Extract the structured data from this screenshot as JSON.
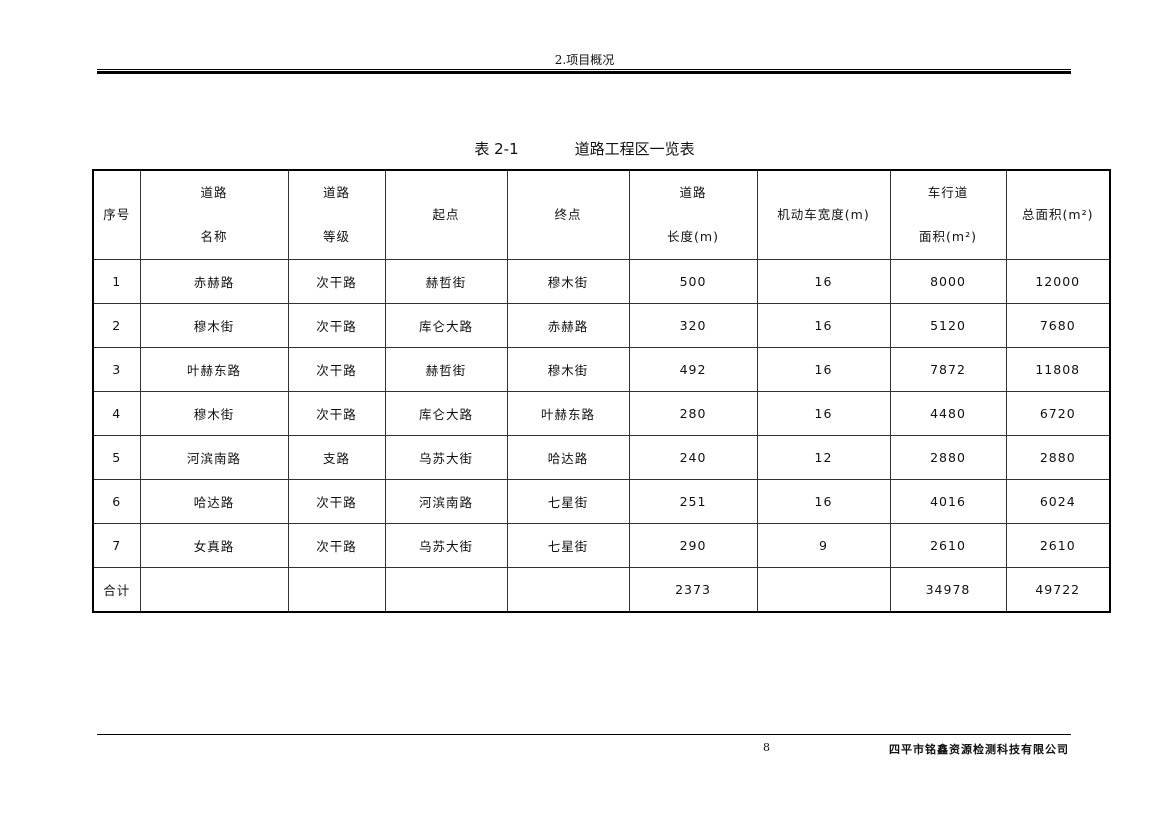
{
  "header": {
    "section": "2.项目概况"
  },
  "caption": {
    "number": "表 2-1",
    "title": "道路工程区一览表"
  },
  "table": {
    "headers": [
      [
        "序号"
      ],
      [
        "道路",
        "名称"
      ],
      [
        "道路",
        "等级"
      ],
      [
        "起点"
      ],
      [
        "终点"
      ],
      [
        "道路",
        "长度(m)"
      ],
      [
        "机动车宽度(m)"
      ],
      [
        "车行道",
        "面积(m²)"
      ],
      [
        "总面积(m²)"
      ]
    ],
    "rows": [
      [
        "1",
        "赤赫路",
        "次干路",
        "赫哲街",
        "穆木街",
        "500",
        "16",
        "8000",
        "12000"
      ],
      [
        "2",
        "穆木街",
        "次干路",
        "库仑大路",
        "赤赫路",
        "320",
        "16",
        "5120",
        "7680"
      ],
      [
        "3",
        "叶赫东路",
        "次干路",
        "赫哲街",
        "穆木街",
        "492",
        "16",
        "7872",
        "11808"
      ],
      [
        "4",
        "穆木街",
        "次干路",
        "库仑大路",
        "叶赫东路",
        "280",
        "16",
        "4480",
        "6720"
      ],
      [
        "5",
        "河滨南路",
        "支路",
        "乌苏大街",
        "哈达路",
        "240",
        "12",
        "2880",
        "2880"
      ],
      [
        "6",
        "哈达路",
        "次干路",
        "河滨南路",
        "七星街",
        "251",
        "16",
        "4016",
        "6024"
      ],
      [
        "7",
        "女真路",
        "次干路",
        "乌苏大街",
        "七星街",
        "290",
        "9",
        "2610",
        "2610"
      ],
      [
        "合计",
        "",
        "",
        "",
        "",
        "2373",
        "",
        "34978",
        "49722"
      ]
    ]
  },
  "footer": {
    "page": "8",
    "company": "四平市铭鑫资源检测科技有限公司"
  }
}
